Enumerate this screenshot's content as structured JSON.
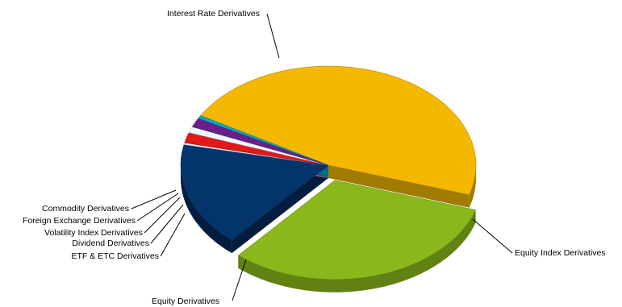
{
  "chart_data": {
    "type": "pie",
    "style": "3d-exploded",
    "legend": "none",
    "slices": [
      {
        "label": "Interest Rate Derivatives",
        "value": 46.5,
        "color": "#F5B800",
        "side": "#A17A00"
      },
      {
        "label": "Equity Index Derivatives",
        "value": 31.5,
        "color": "#8AB81C",
        "side": "#5F8212"
      },
      {
        "label": "Equity Derivatives",
        "value": 17.0,
        "color": "#04346C",
        "side": "#021D3E"
      },
      {
        "label": "ETF & ETC Derivatives",
        "value": 0.3,
        "color": "#E8EEF2",
        "side": "#A9B1B7"
      },
      {
        "label": "Dividend Derivatives",
        "value": 1.7,
        "color": "#E2181A",
        "side": "#8E0C0D"
      },
      {
        "label": "Volatility Index Derivatives",
        "value": 1.0,
        "color": "#E8FAFF",
        "side": "#A6BCC4"
      },
      {
        "label": "Foreign Exchange Derivatives",
        "value": 1.5,
        "color": "#6A1F8A",
        "side": "#421256"
      },
      {
        "label": "Commodity Derivatives",
        "value": 0.5,
        "color": "#00A8C8",
        "side": "#006C82"
      }
    ]
  }
}
